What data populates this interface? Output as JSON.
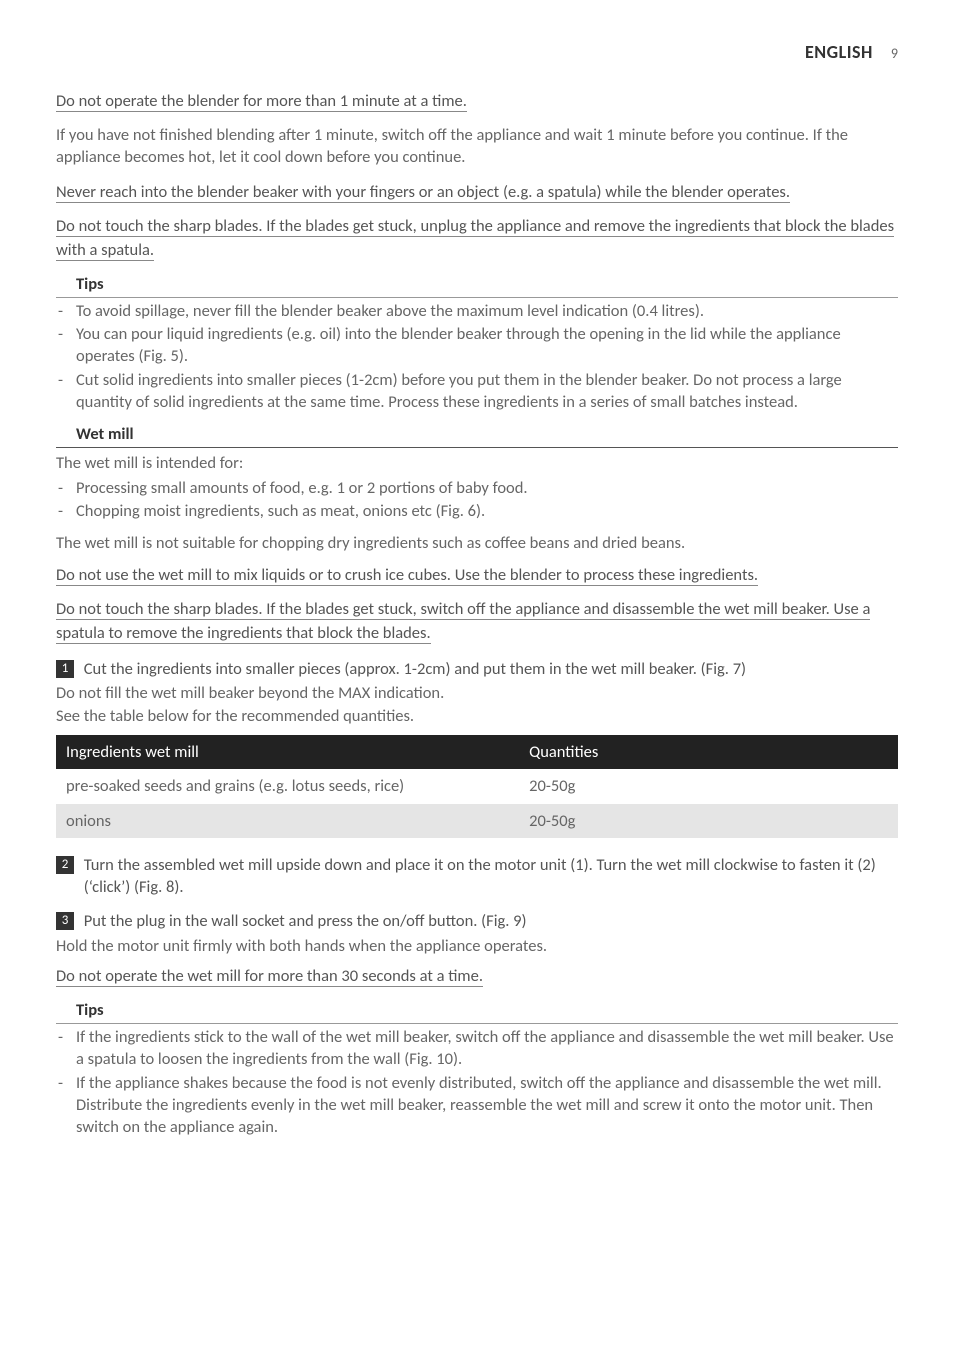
{
  "header": {
    "language": "ENGLISH",
    "page": "9"
  },
  "warnings": {
    "w1": "Do not operate the blender for more than 1 minute at a time.",
    "w2": "Never reach into the blender beaker with your fingers or an object (e.g. a spatula) while the blender operates.",
    "w3": "Do not touch the sharp blades. If the blades get stuck, unplug the appliance and remove the ingredients that block the blades with a spatula.",
    "w4": "Do not use the wet mill to mix liquids or to crush ice cubes. Use the blender to process these ingredients.",
    "w5": "Do not touch the sharp blades. If the blades get stuck, switch off the appliance and disassemble the wet mill beaker. Use a spatula to remove the ingredients that block the blades.",
    "w6": "Do not operate the wet mill for more than 30 seconds at a time."
  },
  "paragraphs": {
    "after_w1": "If you have not finished blending after 1 minute, switch off the appliance and wait 1 minute before you continue. If the appliance becomes hot, let it cool down before you continue.",
    "wetmill_intro": "The wet mill is intended for:",
    "wetmill_outro": "The wet mill is not suitable for chopping dry ingredients such as coffee beans and dried beans.",
    "step1_after_a": "Do not fill the wet mill beaker beyond the MAX indication.",
    "step1_after_b": "See the table below for the recommended quantities.",
    "step3_after": "Hold the motor unit firmly with both hands when the appliance operates."
  },
  "sections": {
    "tips1_title": "Tips",
    "wetmill_title": "Wet mill",
    "tips2_title": "Tips"
  },
  "tips1": [
    "To avoid spillage, never fill the blender beaker above the maximum level indication (0.4 litres).",
    "You can pour liquid ingredients (e.g. oil) into the blender beaker through the opening in the lid while the appliance operates (Fig. 5).",
    "Cut solid ingredients into smaller pieces (1-2cm) before you put them in the blender beaker. Do not process a large quantity of solid ingredients at the same time. Process these ingredients in a series of small batches instead."
  ],
  "wetmill_list": [
    "Processing small amounts of food, e.g. 1 or 2 portions of baby food.",
    "Chopping moist ingredients, such as meat, onions etc (Fig. 6)."
  ],
  "steps": {
    "s1": "Cut the ingredients into smaller pieces (approx. 1-2cm) and put them in the wet mill beaker.  (Fig. 7)",
    "s2": "Turn the assembled wet mill upside down and place it on the motor unit (1). Turn the wet mill clockwise to fasten it (2) (‘click’) (Fig. 8).",
    "s3": "Put the plug in the wall socket and press the on/off button.  (Fig. 9)"
  },
  "table": {
    "header_ing": "Ingredients wet mill",
    "header_qty": "Quantities",
    "rows": [
      {
        "ing": "pre-soaked seeds and grains (e.g. lotus seeds, rice)",
        "qty": "20-50g"
      },
      {
        "ing": "onions",
        "qty": "20-50g"
      }
    ],
    "col1_width": "55%",
    "col2_width": "45%"
  },
  "tips2": [
    "If the ingredients stick to the wall of the wet mill beaker, switch off the appliance and disassemble the wet mill beaker. Use a spatula to loosen the ingredients from the wall (Fig. 10).",
    "If the appliance shakes because the food is not evenly distributed, switch off the appliance and disassemble the wet mill. Distribute the ingredients evenly in the wet mill beaker, reassemble the wet mill and screw it onto the motor unit. Then switch on the appliance again."
  ]
}
